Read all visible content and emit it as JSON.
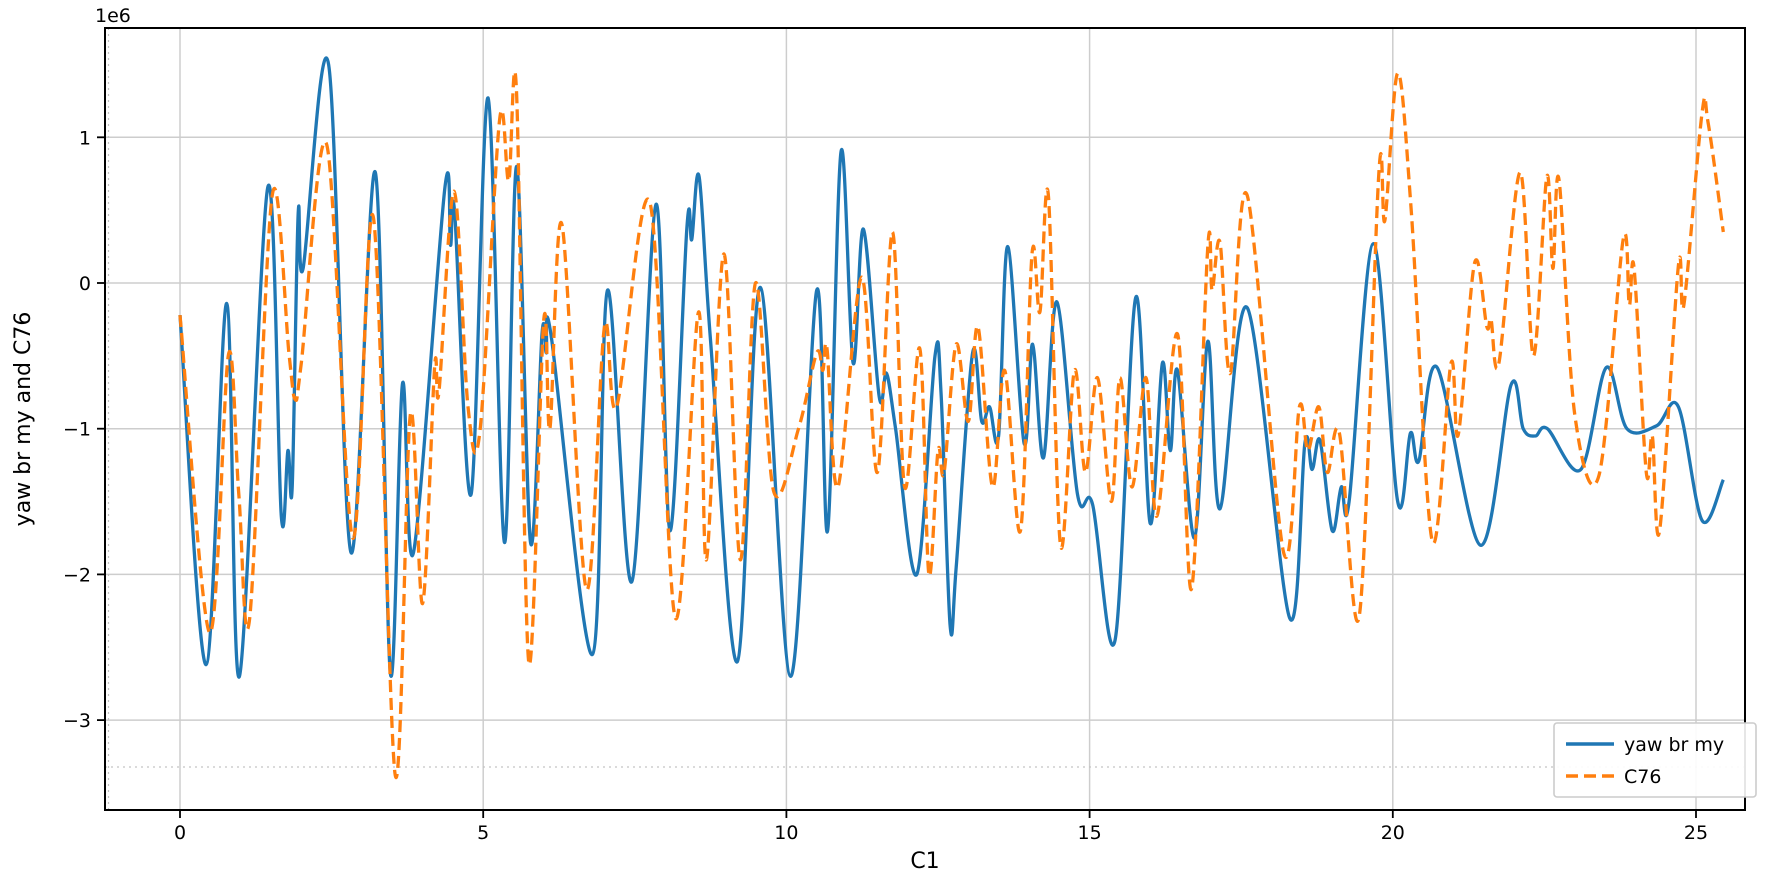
{
  "figure": {
    "offset_text": "1e6",
    "background": "#ffffff"
  },
  "axes": {
    "xlabel": "C1",
    "ylabel": "yaw br my and C76",
    "x_tick_labels": [
      "0",
      "5",
      "10",
      "15",
      "20",
      "25"
    ],
    "x_tick_values": [
      0,
      5,
      10,
      15,
      20,
      25
    ],
    "y_tick_labels": [
      "1",
      "0",
      "−1",
      "−2",
      "−3"
    ],
    "y_tick_values": [
      1,
      0,
      -1,
      -2,
      -3
    ],
    "grid": true,
    "grid_color": "#cdcdcd",
    "spine_color": "#000000"
  },
  "legend": {
    "position": "lower right",
    "items": [
      {
        "label": "yaw br my",
        "color": "#1f77b4",
        "linestyle": "solid"
      },
      {
        "label": "C76",
        "color": "#ff7f0e",
        "linestyle": "dashed"
      }
    ]
  },
  "chart_data": {
    "type": "line",
    "title": "",
    "xlabel": "C1",
    "ylabel": "yaw br my and C76",
    "y_scale": 1000000,
    "y_offset_label": "1e6",
    "xlim": [
      -1.24,
      25.81
    ],
    "ylim": [
      -3.62,
      1.75
    ],
    "x_ticks": [
      0,
      5,
      10,
      15,
      20,
      25
    ],
    "y_ticks": [
      1,
      0,
      -1,
      -2,
      -3
    ],
    "grid": "on",
    "legend_position": "lower right",
    "series": [
      {
        "name": "yaw br my",
        "color": "#1f77b4",
        "linestyle": "solid",
        "points": [
          [
            0.0,
            -0.22
          ],
          [
            0.43,
            -2.62
          ],
          [
            0.77,
            -0.14
          ],
          [
            0.98,
            -2.7
          ],
          [
            1.45,
            0.66
          ],
          [
            1.67,
            -1.6
          ],
          [
            1.78,
            -1.15
          ],
          [
            1.85,
            -1.4
          ],
          [
            1.95,
            0.48
          ],
          [
            2.03,
            0.1
          ],
          [
            2.45,
            1.5
          ],
          [
            2.82,
            -1.85
          ],
          [
            3.22,
            0.76
          ],
          [
            3.47,
            -2.68
          ],
          [
            3.67,
            -0.69
          ],
          [
            3.85,
            -1.85
          ],
          [
            4.37,
            0.66
          ],
          [
            4.46,
            0.26
          ],
          [
            4.53,
            0.48
          ],
          [
            4.8,
            -1.45
          ],
          [
            5.08,
            1.27
          ],
          [
            5.35,
            -1.78
          ],
          [
            5.55,
            0.8
          ],
          [
            5.78,
            -1.78
          ],
          [
            5.97,
            -0.35
          ],
          [
            6.04,
            -0.48
          ],
          [
            6.12,
            -0.36
          ],
          [
            6.8,
            -2.55
          ],
          [
            7.05,
            -0.05
          ],
          [
            7.45,
            -2.05
          ],
          [
            7.85,
            0.54
          ],
          [
            8.08,
            -1.7
          ],
          [
            8.36,
            0.39
          ],
          [
            8.44,
            0.3
          ],
          [
            8.56,
            0.73
          ],
          [
            8.75,
            -0.4
          ],
          [
            9.19,
            -2.6
          ],
          [
            9.57,
            -0.03
          ],
          [
            10.07,
            -2.7
          ],
          [
            10.5,
            -0.05
          ],
          [
            10.68,
            -1.7
          ],
          [
            10.9,
            0.9
          ],
          [
            11.1,
            -0.55
          ],
          [
            11.27,
            0.37
          ],
          [
            11.53,
            -0.78
          ],
          [
            11.65,
            -0.62
          ],
          [
            11.8,
            -1.0
          ],
          [
            12.15,
            -2.0
          ],
          [
            12.45,
            -0.5
          ],
          [
            12.55,
            -0.75
          ],
          [
            12.7,
            -2.35
          ],
          [
            12.8,
            -1.95
          ],
          [
            13.07,
            -0.48
          ],
          [
            13.22,
            -0.95
          ],
          [
            13.35,
            -0.85
          ],
          [
            13.5,
            -1.05
          ],
          [
            13.65,
            0.25
          ],
          [
            13.92,
            -1.1
          ],
          [
            14.06,
            -0.42
          ],
          [
            14.24,
            -1.2
          ],
          [
            14.46,
            -0.13
          ],
          [
            14.8,
            -1.45
          ],
          [
            15.05,
            -1.52
          ],
          [
            15.42,
            -2.45
          ],
          [
            15.76,
            -0.1
          ],
          [
            16.0,
            -1.65
          ],
          [
            16.2,
            -0.55
          ],
          [
            16.33,
            -1.15
          ],
          [
            16.45,
            -0.6
          ],
          [
            16.73,
            -1.75
          ],
          [
            16.95,
            -0.4
          ],
          [
            17.15,
            -1.55
          ],
          [
            17.6,
            -0.17
          ],
          [
            18.3,
            -2.3
          ],
          [
            18.55,
            -1.1
          ],
          [
            18.67,
            -1.28
          ],
          [
            18.8,
            -1.08
          ],
          [
            19.0,
            -1.7
          ],
          [
            19.15,
            -1.4
          ],
          [
            19.28,
            -1.5
          ],
          [
            19.68,
            0.27
          ],
          [
            20.08,
            -1.5
          ],
          [
            20.29,
            -1.03
          ],
          [
            20.43,
            -1.22
          ],
          [
            20.73,
            -0.58
          ],
          [
            21.45,
            -1.8
          ],
          [
            21.95,
            -0.7
          ],
          [
            22.15,
            -1.0
          ],
          [
            22.35,
            -1.05
          ],
          [
            22.55,
            -1.0
          ],
          [
            23.1,
            -1.28
          ],
          [
            23.52,
            -0.58
          ],
          [
            23.86,
            -1.0
          ],
          [
            24.35,
            -0.98
          ],
          [
            24.71,
            -0.85
          ],
          [
            25.1,
            -1.63
          ],
          [
            25.45,
            -1.35
          ]
        ]
      },
      {
        "name": "C76",
        "color": "#ff7f0e",
        "linestyle": "dashed",
        "points": [
          [
            0.0,
            -0.22
          ],
          [
            0.49,
            -2.4
          ],
          [
            0.8,
            -0.49
          ],
          [
            0.97,
            -1.45
          ],
          [
            1.15,
            -2.3
          ],
          [
            1.52,
            0.6
          ],
          [
            1.8,
            -0.5
          ],
          [
            1.9,
            -0.8
          ],
          [
            2.0,
            -0.55
          ],
          [
            2.42,
            0.95
          ],
          [
            2.85,
            -1.75
          ],
          [
            3.19,
            0.45
          ],
          [
            3.55,
            -3.38
          ],
          [
            3.8,
            -0.9
          ],
          [
            4.0,
            -2.2
          ],
          [
            4.2,
            -0.57
          ],
          [
            4.27,
            -0.75
          ],
          [
            4.52,
            0.63
          ],
          [
            4.75,
            -0.85
          ],
          [
            4.95,
            -1.0
          ],
          [
            5.27,
            1.12
          ],
          [
            5.42,
            0.7
          ],
          [
            5.55,
            1.3
          ],
          [
            5.75,
            -2.6
          ],
          [
            6.0,
            -0.25
          ],
          [
            6.1,
            -1.0
          ],
          [
            6.3,
            0.4
          ],
          [
            6.7,
            -2.1
          ],
          [
            7.0,
            -0.3
          ],
          [
            7.2,
            -0.85
          ],
          [
            7.75,
            0.55
          ],
          [
            8.17,
            -2.3
          ],
          [
            8.55,
            -0.2
          ],
          [
            8.68,
            -1.9
          ],
          [
            8.97,
            0.2
          ],
          [
            9.24,
            -1.9
          ],
          [
            9.49,
            0.0
          ],
          [
            9.79,
            -1.43
          ],
          [
            10.2,
            -1.0
          ],
          [
            10.5,
            -0.48
          ],
          [
            10.6,
            -0.6
          ],
          [
            10.67,
            -0.45
          ],
          [
            10.85,
            -1.4
          ],
          [
            11.24,
            0.04
          ],
          [
            11.5,
            -1.3
          ],
          [
            11.75,
            0.35
          ],
          [
            11.95,
            -1.4
          ],
          [
            12.2,
            -0.45
          ],
          [
            12.35,
            -2.0
          ],
          [
            12.5,
            -1.15
          ],
          [
            12.6,
            -1.3
          ],
          [
            12.8,
            -0.42
          ],
          [
            13.0,
            -0.95
          ],
          [
            13.16,
            -0.3
          ],
          [
            13.4,
            -1.4
          ],
          [
            13.6,
            -0.6
          ],
          [
            13.86,
            -1.7
          ],
          [
            14.05,
            0.2
          ],
          [
            14.18,
            -0.2
          ],
          [
            14.32,
            0.6
          ],
          [
            14.52,
            -1.8
          ],
          [
            14.75,
            -0.6
          ],
          [
            14.93,
            -1.3
          ],
          [
            15.13,
            -0.65
          ],
          [
            15.36,
            -1.5
          ],
          [
            15.5,
            -0.65
          ],
          [
            15.7,
            -1.4
          ],
          [
            15.93,
            -0.65
          ],
          [
            16.11,
            -1.6
          ],
          [
            16.45,
            -0.35
          ],
          [
            16.68,
            -2.1
          ],
          [
            16.95,
            0.25
          ],
          [
            17.02,
            -0.05
          ],
          [
            17.15,
            0.28
          ],
          [
            17.32,
            -0.62
          ],
          [
            17.6,
            0.6
          ],
          [
            18.2,
            -1.85
          ],
          [
            18.46,
            -0.85
          ],
          [
            18.6,
            -1.15
          ],
          [
            18.78,
            -0.85
          ],
          [
            18.92,
            -1.3
          ],
          [
            19.12,
            -1.03
          ],
          [
            19.45,
            -2.28
          ],
          [
            19.77,
            0.76
          ],
          [
            19.87,
            0.43
          ],
          [
            20.08,
            1.44
          ],
          [
            20.3,
            0.52
          ],
          [
            20.65,
            -1.77
          ],
          [
            20.96,
            -0.55
          ],
          [
            21.08,
            -1.04
          ],
          [
            21.35,
            0.14
          ],
          [
            21.55,
            -0.3
          ],
          [
            21.62,
            -0.25
          ],
          [
            21.75,
            -0.55
          ],
          [
            22.1,
            0.76
          ],
          [
            22.32,
            -0.5
          ],
          [
            22.54,
            0.73
          ],
          [
            22.64,
            0.1
          ],
          [
            22.74,
            0.71
          ],
          [
            23.0,
            -0.9
          ],
          [
            23.4,
            -1.32
          ],
          [
            23.8,
            0.3
          ],
          [
            23.9,
            -0.15
          ],
          [
            23.98,
            0.1
          ],
          [
            24.18,
            -1.3
          ],
          [
            24.28,
            -1.05
          ],
          [
            24.4,
            -1.7
          ],
          [
            24.71,
            0.12
          ],
          [
            24.8,
            -0.15
          ],
          [
            25.1,
            1.17
          ],
          [
            25.2,
            1.1
          ],
          [
            25.45,
            0.35
          ]
        ]
      }
    ]
  }
}
